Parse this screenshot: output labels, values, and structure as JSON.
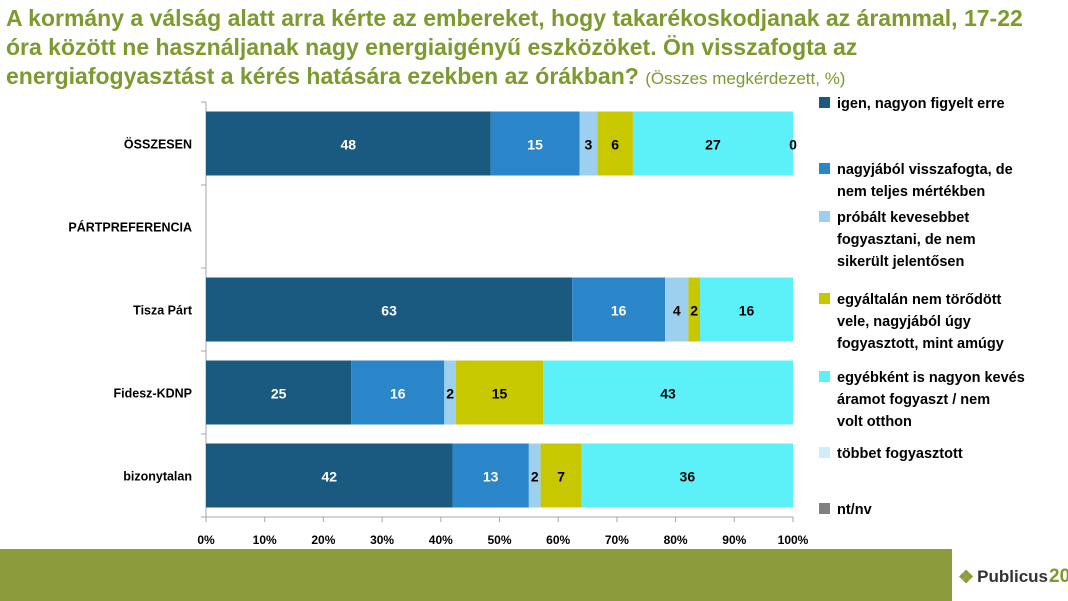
{
  "title": {
    "main": "A kormány a válság alatt arra kérte az embereket, hogy takarékoskodjanak az árammal, 17-22 óra között ne használjanak nagy energiaigényű eszközöket. Ön visszafogta az energiafogyasztást a kérés hatására ezekben az órákban?",
    "sub": "(Összes megkérdezett, %)"
  },
  "logo": {
    "text": "Publicus",
    "number": "20",
    "icon": "diamond-logo-icon"
  },
  "chart_data": {
    "type": "bar",
    "orientation": "horizontal",
    "stacked": true,
    "percent_stacked": true,
    "categories": [
      "ÖSSZESEN",
      "PÁRTPREFERENCIA",
      "Tisza Párt",
      "Fidesz-KDNP",
      "bizonytalan"
    ],
    "series": [
      {
        "name": "igen, nagyon figyelt erre",
        "color": "#1a5a80",
        "values": [
          48,
          null,
          63,
          25,
          42
        ],
        "labels": [
          "48",
          "",
          "63",
          "25",
          "42"
        ]
      },
      {
        "name": "nagyjából visszafogta, de nem teljes mértékben",
        "color": "#2a86c8",
        "values": [
          15,
          null,
          16,
          16,
          13
        ],
        "labels": [
          "15",
          "",
          "16",
          "16",
          "13"
        ]
      },
      {
        "name": "próbált kevesebbet fogyasztani, de nem sikerült jelentősen",
        "color": "#9dd0ee",
        "values": [
          3,
          null,
          4,
          2,
          2
        ],
        "labels": [
          "3",
          "",
          "4",
          "2",
          "2"
        ]
      },
      {
        "name": "egyáltalán nem törődött vele, nagyjából úgy fogyasztott, mint amúgy",
        "color": "#c8c800",
        "values": [
          6,
          null,
          2,
          15,
          7
        ],
        "labels": [
          "6",
          "",
          "2",
          "15",
          "7"
        ]
      },
      {
        "name": "egyébként is nagyon kevés áramot fogyaszt / nem volt otthon",
        "color": "#5cf0f8",
        "values": [
          27,
          null,
          16,
          43,
          36
        ],
        "labels": [
          "27",
          "",
          "16",
          "43",
          "36"
        ]
      },
      {
        "name": "többet fogyasztott",
        "color": "#cfeefa",
        "values": [
          0,
          null,
          0,
          0,
          0
        ],
        "labels": [
          "0",
          "",
          "",
          "",
          ""
        ]
      },
      {
        "name": "nt/nv",
        "color": "#808080",
        "values": [
          0,
          null,
          0,
          0,
          0
        ],
        "labels": [
          "",
          "",
          "",
          "",
          ""
        ]
      }
    ],
    "x_ticks": [
      "0%",
      "10%",
      "20%",
      "30%",
      "40%",
      "50%",
      "60%",
      "70%",
      "80%",
      "90%",
      "100%"
    ],
    "xlim": [
      0,
      100
    ],
    "legend_position": "right",
    "grid": false
  }
}
